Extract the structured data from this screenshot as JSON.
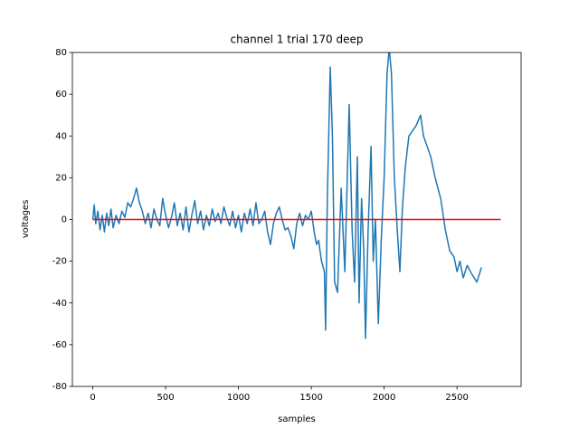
{
  "chart_data": {
    "type": "line",
    "title": "channel 1 trial 170 deep",
    "xlabel": "samples",
    "ylabel": "voltages",
    "xlim": [
      -140,
      2940
    ],
    "ylim": [
      -80,
      80
    ],
    "xticks": [
      0,
      500,
      1000,
      1500,
      2000,
      2500
    ],
    "yticks": [
      -80,
      -60,
      -40,
      -20,
      0,
      20,
      40,
      60,
      80
    ],
    "series": [
      {
        "color": "#1f77b4",
        "x": [
          0,
          10,
          20,
          35,
          50,
          65,
          80,
          95,
          110,
          125,
          140,
          160,
          180,
          200,
          220,
          240,
          260,
          280,
          300,
          320,
          340,
          360,
          380,
          400,
          420,
          440,
          460,
          480,
          500,
          520,
          540,
          560,
          580,
          600,
          620,
          640,
          660,
          680,
          700,
          720,
          740,
          760,
          780,
          800,
          820,
          840,
          860,
          880,
          900,
          920,
          940,
          960,
          980,
          1000,
          1020,
          1040,
          1060,
          1080,
          1100,
          1120,
          1140,
          1160,
          1180,
          1200,
          1220,
          1240,
          1260,
          1280,
          1300,
          1320,
          1340,
          1360,
          1380,
          1400,
          1420,
          1440,
          1460,
          1480,
          1500,
          1520,
          1536,
          1550,
          1570,
          1590,
          1598,
          1610,
          1630,
          1645,
          1660,
          1680,
          1705,
          1730,
          1760,
          1780,
          1797,
          1816,
          1828,
          1845,
          1860,
          1872,
          1890,
          1910,
          1925,
          1940,
          1960,
          1980,
          2000,
          2020,
          2035,
          2050,
          2070,
          2090,
          2108,
          2125,
          2145,
          2170,
          2190,
          2220,
          2250,
          2270,
          2295,
          2320,
          2350,
          2388,
          2420,
          2450,
          2480,
          2500,
          2520,
          2543,
          2570,
          2600,
          2636,
          2668
        ],
        "values": [
          0,
          7,
          -2,
          4,
          -5,
          2,
          -6,
          3,
          -3,
          5,
          -4,
          2,
          -2,
          4,
          1,
          8,
          6,
          10,
          15,
          8,
          4,
          -2,
          3,
          -4,
          5,
          0,
          -3,
          10,
          2,
          -4,
          1,
          8,
          -3,
          3,
          -5,
          6,
          -6,
          2,
          9,
          -2,
          4,
          -5,
          2,
          -3,
          5,
          -1,
          3,
          -2,
          6,
          1,
          -3,
          4,
          -4,
          2,
          -6,
          3,
          -2,
          5,
          -3,
          8,
          -2,
          0,
          4,
          -6,
          -12,
          -2,
          3,
          6,
          0,
          -5,
          -4,
          -8,
          -14,
          -2,
          3,
          -3,
          2,
          0,
          4,
          -6,
          -12,
          -10,
          -20,
          -25,
          -53,
          10,
          73,
          40,
          -30,
          -35,
          15,
          -25,
          55,
          -5,
          -30,
          30,
          -40,
          10,
          -15,
          -57,
          -5,
          35,
          -20,
          0,
          -50,
          -10,
          20,
          70,
          82,
          70,
          20,
          -5,
          -25,
          5,
          25,
          40,
          42,
          45,
          50,
          40,
          35,
          30,
          20,
          10,
          -5,
          -15,
          -18,
          -25,
          -20,
          -28,
          -22,
          -26,
          -30,
          -23
        ]
      },
      {
        "color": "#ff0000",
        "x": [
          0,
          2800
        ],
        "values": [
          0,
          0
        ]
      }
    ]
  }
}
